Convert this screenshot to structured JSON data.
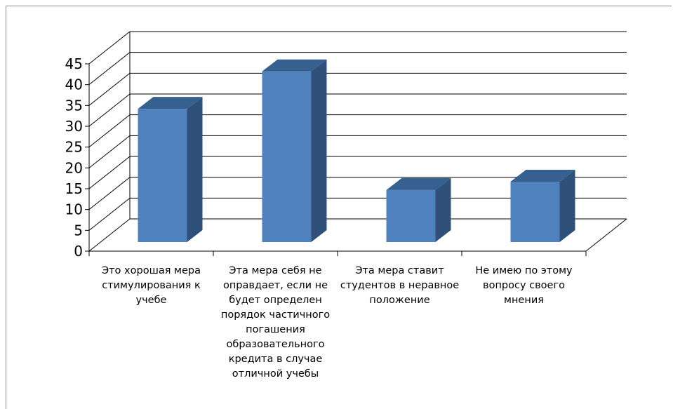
{
  "chart_data": {
    "type": "bar",
    "categories": [
      "Это хорошая мера стимулирования к учебе",
      "Эта мера себя не оправдает, если не будет определен порядок частичного погашения образовательного кредита в случае отличной учебы",
      "Эта мера ставит студентов в неравное положение",
      "Не имею по этому вопросу своего мнения"
    ],
    "series": [
      {
        "values": [
          32,
          41,
          12.5,
          14.5
        ]
      }
    ],
    "ylim": [
      0,
      45
    ],
    "yticks": [
      0,
      5,
      10,
      15,
      20,
      25,
      30,
      35,
      40,
      45
    ],
    "grid": true,
    "three_d": true,
    "colors": {
      "bar_front": "#4f81bd",
      "bar_side": "#2f5078",
      "bar_top": "#35608f",
      "grid": "#000000"
    }
  }
}
